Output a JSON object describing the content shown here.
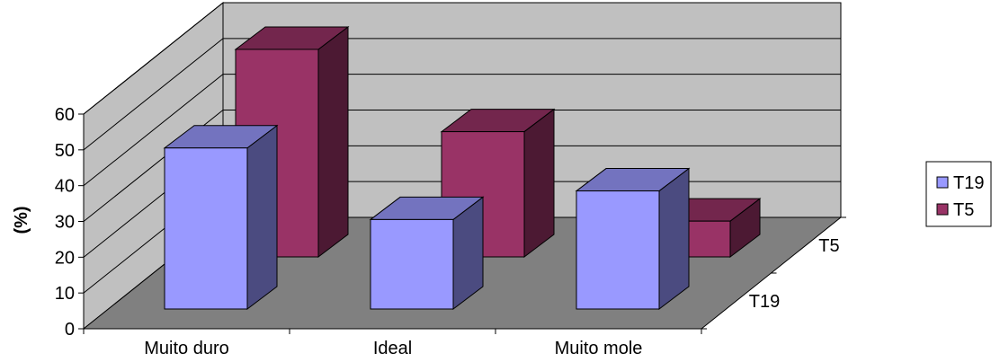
{
  "chart_data": {
    "type": "bar",
    "subtype": "3d-clustered-depth",
    "title": "",
    "xlabel": "",
    "ylabel": "(%)",
    "ylim": [
      0,
      60
    ],
    "yticks": [
      "0",
      "10",
      "20",
      "30",
      "40",
      "50",
      "60"
    ],
    "categories": [
      "Muito duro",
      "Ideal",
      "Muito mole"
    ],
    "depth_labels": [
      "T19",
      "T5"
    ],
    "series": [
      {
        "name": "T19",
        "values": [
          45,
          25,
          33
        ],
        "color": "#9999FF",
        "side_color": "#4B4B80",
        "top_color": "#7373BF"
      },
      {
        "name": "T5",
        "values": [
          58,
          35,
          10
        ],
        "color": "#993366",
        "side_color": "#4C1933",
        "top_color": "#73264D"
      }
    ],
    "grid": true,
    "legend": {
      "position": "right",
      "items": [
        "T19",
        "T5"
      ]
    },
    "colors": {
      "wall": "#C0C0C0",
      "floor": "#808080",
      "gridline": "#000000"
    }
  }
}
